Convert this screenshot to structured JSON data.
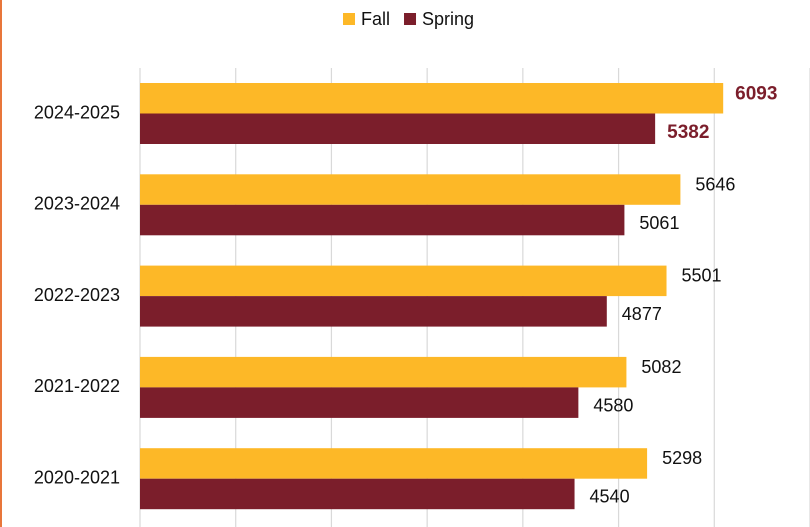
{
  "chart_data": {
    "type": "barh",
    "categories": [
      "2024-2025",
      "2023-2024",
      "2022-2023",
      "2021-2022",
      "2020-2021"
    ],
    "series": [
      {
        "name": "Fall",
        "color": "#fdb827",
        "values": [
          6093,
          5646,
          5501,
          5082,
          5298
        ]
      },
      {
        "name": "Spring",
        "color": "#7b1e2b",
        "values": [
          5382,
          5061,
          4877,
          4580,
          4540
        ]
      }
    ],
    "xlim": [
      0,
      7000
    ],
    "xticks": [
      0,
      1000,
      2000,
      3000,
      4000,
      5000,
      6000,
      7000
    ],
    "grid": true,
    "legend": "top"
  }
}
